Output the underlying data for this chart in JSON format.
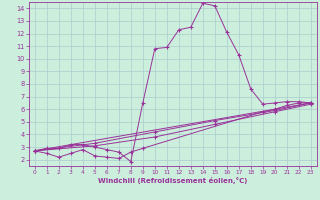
{
  "background_color": "#cceedd",
  "grid_color": "#aacccc",
  "line_color": "#993399",
  "marker": "+",
  "xlabel": "Windchill (Refroidissement éolien,°C)",
  "xlim": [
    -0.5,
    23.5
  ],
  "ylim": [
    1.5,
    14.5
  ],
  "xticks": [
    0,
    1,
    2,
    3,
    4,
    5,
    6,
    7,
    8,
    9,
    10,
    11,
    12,
    13,
    14,
    15,
    16,
    17,
    18,
    19,
    20,
    21,
    22,
    23
  ],
  "yticks": [
    2,
    3,
    4,
    5,
    6,
    7,
    8,
    9,
    10,
    11,
    12,
    13,
    14
  ],
  "series": [
    [
      [
        0,
        2.7
      ],
      [
        1,
        2.9
      ],
      [
        2,
        2.9
      ],
      [
        3,
        3.2
      ],
      [
        4,
        3.2
      ],
      [
        5,
        3.0
      ],
      [
        6,
        2.8
      ],
      [
        7,
        2.6
      ],
      [
        8,
        1.85
      ],
      [
        9,
        6.5
      ],
      [
        10,
        10.8
      ],
      [
        11,
        10.9
      ],
      [
        12,
        12.3
      ],
      [
        13,
        12.5
      ],
      [
        14,
        14.4
      ],
      [
        15,
        14.2
      ],
      [
        16,
        12.1
      ],
      [
        17,
        10.3
      ],
      [
        18,
        7.6
      ],
      [
        19,
        6.4
      ],
      [
        20,
        6.5
      ],
      [
        21,
        6.6
      ],
      [
        22,
        6.6
      ],
      [
        23,
        6.5
      ]
    ],
    [
      [
        0,
        2.7
      ],
      [
        1,
        2.5
      ],
      [
        2,
        2.2
      ],
      [
        3,
        2.5
      ],
      [
        4,
        2.8
      ],
      [
        5,
        2.3
      ],
      [
        6,
        2.2
      ],
      [
        7,
        2.1
      ],
      [
        8,
        2.6
      ],
      [
        9,
        2.9
      ],
      [
        19,
        5.8
      ],
      [
        20,
        6.0
      ],
      [
        21,
        6.3
      ],
      [
        22,
        6.5
      ],
      [
        23,
        6.5
      ]
    ],
    [
      [
        0,
        2.7
      ],
      [
        23,
        6.5
      ]
    ],
    [
      [
        0,
        2.7
      ],
      [
        5,
        3.1
      ],
      [
        10,
        3.8
      ],
      [
        15,
        4.8
      ],
      [
        20,
        5.8
      ],
      [
        23,
        6.4
      ]
    ],
    [
      [
        0,
        2.7
      ],
      [
        5,
        3.3
      ],
      [
        10,
        4.2
      ],
      [
        15,
        5.1
      ],
      [
        20,
        5.9
      ],
      [
        23,
        6.5
      ]
    ]
  ]
}
